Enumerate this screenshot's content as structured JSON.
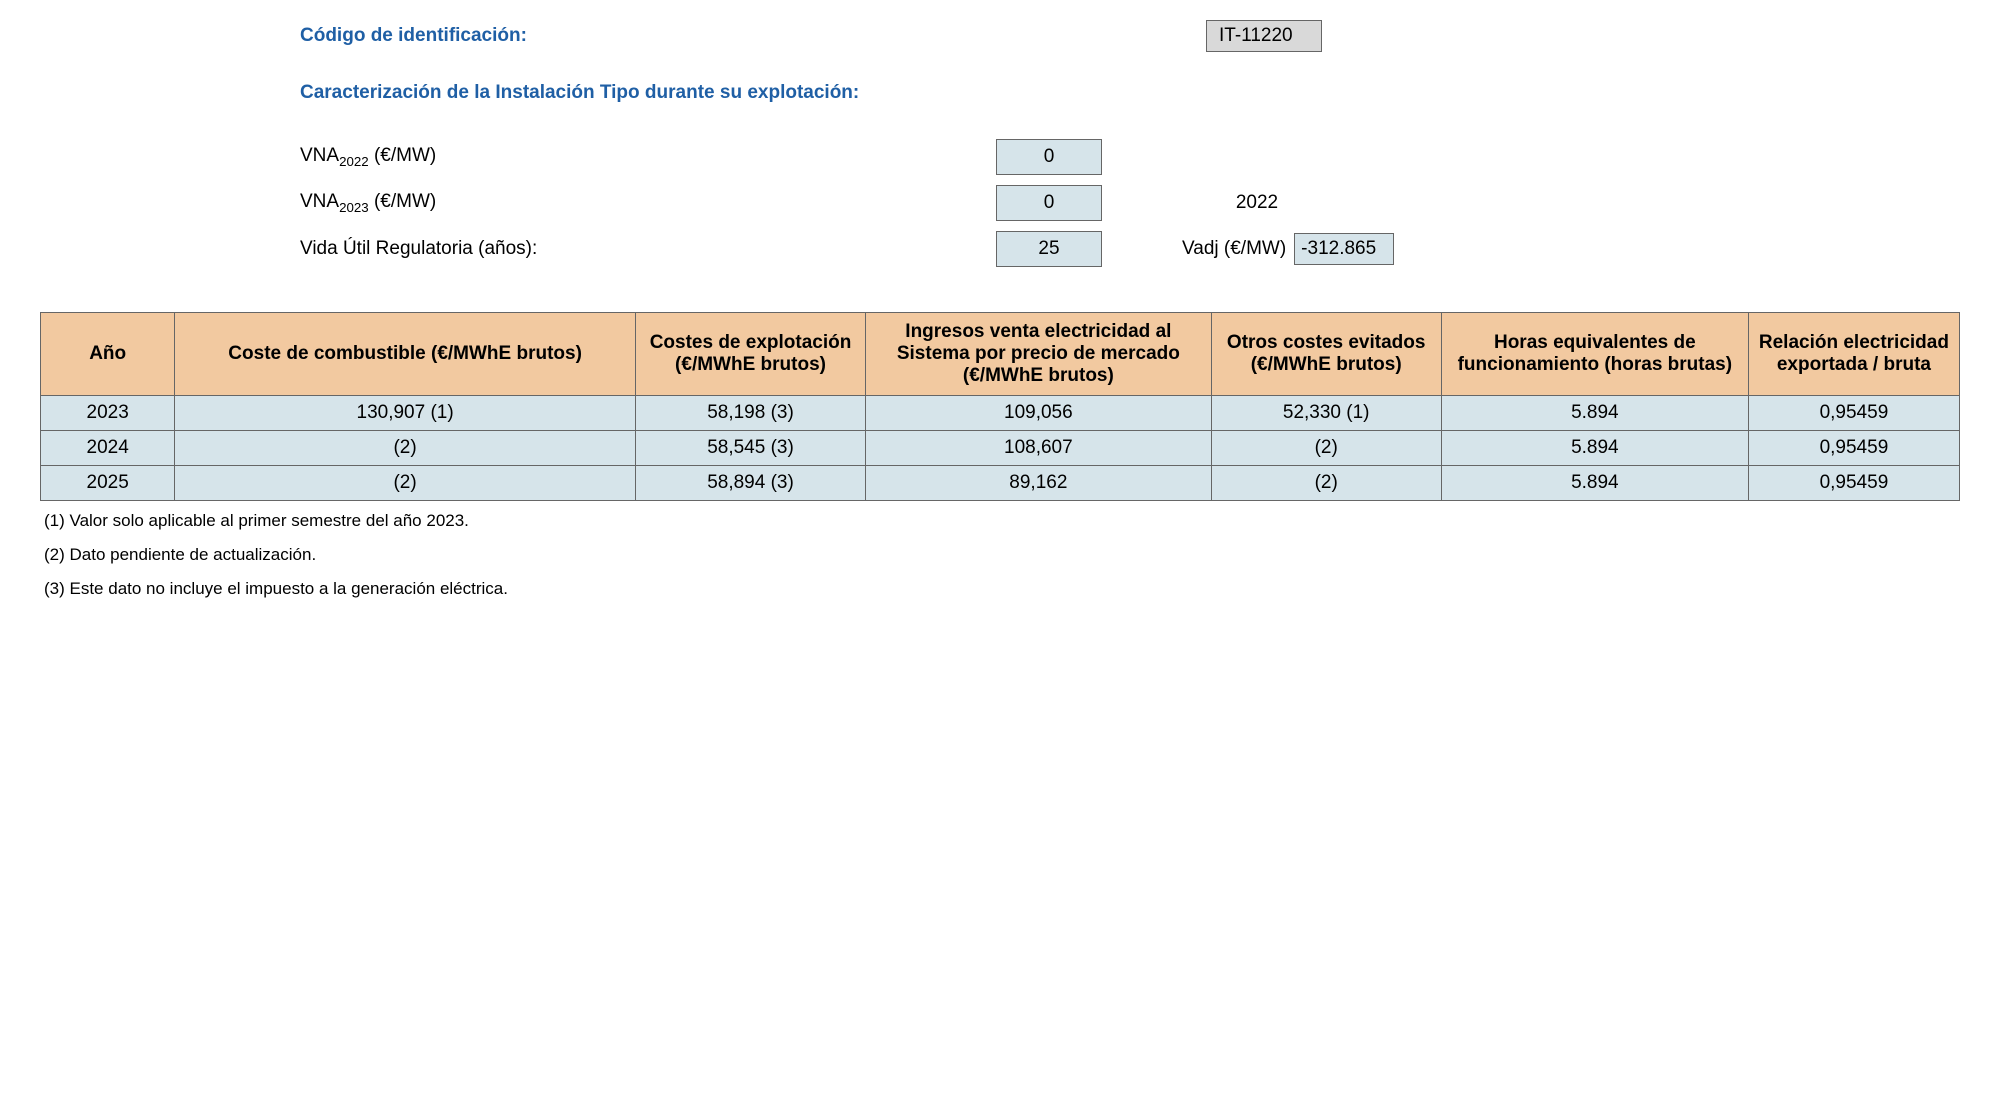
{
  "header": {
    "code_label": "Código de identificación:",
    "code_value": "IT-11220",
    "section_title": "Caracterización de la Instalación Tipo durante su explotación:"
  },
  "params": {
    "vna_2022_label_html": "VNA<sub>2022</sub> (€/MW)",
    "vna_2022_value": "0",
    "vna_2023_label_html": "VNA<sub>2023</sub> (€/MW)",
    "vna_2023_value": "0",
    "year_side": "2022",
    "vida_label": "Vida Útil Regulatoria (años):",
    "vida_value": "25",
    "vadj_label": "Vadj (€/MW)",
    "vadj_value": "-312.865"
  },
  "table": {
    "columns": [
      "Año",
      "Coste de combustible (€/MWhE brutos)",
      "Costes de explotación (€/MWhE brutos)",
      "Ingresos venta electricidad al Sistema por precio de mercado (€/MWhE brutos)",
      "Otros costes evitados (€/MWhE brutos)",
      "Horas equivalentes de funcionamiento (horas brutas)",
      "Relación electricidad exportada / bruta"
    ],
    "col_widths_pct": [
      7,
      24,
      12,
      18,
      12,
      16,
      11
    ],
    "rows": [
      [
        "2023",
        "130,907 (1)",
        "58,198 (3)",
        "109,056",
        "52,330 (1)",
        "5.894",
        "0,95459"
      ],
      [
        "2024",
        "(2)",
        "58,545 (3)",
        "108,607",
        "(2)",
        "5.894",
        "0,95459"
      ],
      [
        "2025",
        "(2)",
        "58,894 (3)",
        "89,162",
        "(2)",
        "5.894",
        "0,95459"
      ]
    ]
  },
  "notes": [
    "(1) Valor solo aplicable al primer semestre del año 2023.",
    "(2) Dato pendiente de actualización.",
    "(3) Este dato no incluye el impuesto a la generación eléctrica."
  ],
  "colors": {
    "header_bg": "#f2c9a0",
    "cell_bg": "#d6e4ea",
    "accent": "#1f5fa5",
    "codebox_bg": "#d9d9d9",
    "border": "#666666"
  }
}
